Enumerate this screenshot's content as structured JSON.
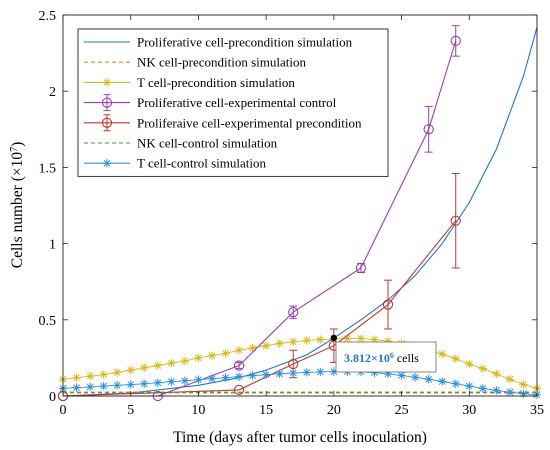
{
  "chart_data": {
    "type": "line",
    "xlabel": "Time (days after tumor cells inoculation)",
    "ylabel": "Cells number (×10",
    "ylabel_exponent": "7",
    "ylabel_close": ")",
    "xlim": [
      0,
      35
    ],
    "ylim": [
      0,
      2.5
    ],
    "x_ticks": [
      0,
      5,
      10,
      15,
      20,
      25,
      30,
      35
    ],
    "y_ticks": [
      0,
      0.5,
      1,
      1.5,
      2,
      2.5
    ],
    "grid": false,
    "legend_position": "top-left",
    "series": [
      {
        "name": "Proliferative cell-precondition simulation",
        "style": "line",
        "color": "#1f77c9",
        "dash": "",
        "marker": "none",
        "x": [
          0,
          5,
          10,
          13,
          15,
          18,
          20,
          22,
          24,
          26,
          28,
          30,
          32,
          34,
          35
        ],
        "y": [
          0,
          0.02,
          0.07,
          0.12,
          0.17,
          0.27,
          0.38,
          0.5,
          0.63,
          0.79,
          1.0,
          1.27,
          1.62,
          2.1,
          2.42
        ]
      },
      {
        "name": "NK cell-precondition simulation",
        "style": "line",
        "color": "#e0844a",
        "dash": "4,3",
        "marker": "none",
        "x": [
          0,
          35
        ],
        "y": [
          0.02,
          0.02
        ]
      },
      {
        "name": "T cell-precondition simulation",
        "style": "line",
        "color": "#d9b81c",
        "dash": "",
        "marker": "star",
        "x": [
          0,
          1,
          2,
          3,
          4,
          5,
          6,
          7,
          8,
          9,
          10,
          11,
          12,
          13,
          14,
          15,
          16,
          17,
          18,
          19,
          20,
          21,
          22,
          23,
          24,
          25,
          26,
          27,
          28,
          29,
          30,
          31,
          32,
          33,
          34,
          35
        ],
        "y": [
          0.11,
          0.12,
          0.13,
          0.14,
          0.155,
          0.17,
          0.185,
          0.2,
          0.215,
          0.23,
          0.25,
          0.265,
          0.28,
          0.3,
          0.315,
          0.33,
          0.345,
          0.355,
          0.365,
          0.37,
          0.375,
          0.378,
          0.378,
          0.37,
          0.36,
          0.345,
          0.325,
          0.3,
          0.275,
          0.245,
          0.21,
          0.18,
          0.145,
          0.11,
          0.075,
          0.05
        ]
      },
      {
        "name": "Proliferative cell-experimental control",
        "style": "errorbar",
        "color": "#9b3fb0",
        "dash": "",
        "marker": "circle",
        "x": [
          0,
          7,
          13,
          17,
          22,
          27,
          29
        ],
        "y": [
          0,
          0,
          0.2,
          0.55,
          0.84,
          1.75,
          2.33
        ],
        "err": [
          0,
          0,
          0.02,
          0.04,
          0.03,
          0.15,
          0.1
        ]
      },
      {
        "name": "Proliferaive cell-experimental precondition",
        "style": "errorbar",
        "color": "#c0392b",
        "dash": "",
        "marker": "circle",
        "x": [
          0,
          13,
          17,
          20,
          24,
          29
        ],
        "y": [
          0,
          0.04,
          0.21,
          0.33,
          0.6,
          1.15
        ],
        "err": [
          0,
          0,
          0.09,
          0.11,
          0.16,
          0.31
        ]
      },
      {
        "name": "NK cell-control simulation",
        "style": "line",
        "color": "#3aa12f",
        "dash": "4,3",
        "marker": "none",
        "x": [
          0,
          35
        ],
        "y": [
          0.025,
          0.025
        ]
      },
      {
        "name": "T cell-control simulation",
        "style": "line",
        "color": "#2f8fde",
        "dash": "",
        "marker": "star",
        "x": [
          0,
          1,
          2,
          3,
          4,
          5,
          6,
          7,
          8,
          9,
          10,
          11,
          12,
          13,
          14,
          15,
          16,
          17,
          18,
          19,
          20,
          21,
          22,
          23,
          24,
          25,
          26,
          27,
          28,
          29,
          30,
          31,
          32,
          33,
          34,
          35
        ],
        "y": [
          0.05,
          0.055,
          0.06,
          0.065,
          0.07,
          0.075,
          0.08,
          0.087,
          0.094,
          0.1,
          0.107,
          0.114,
          0.12,
          0.127,
          0.134,
          0.14,
          0.146,
          0.151,
          0.155,
          0.158,
          0.16,
          0.16,
          0.158,
          0.153,
          0.145,
          0.135,
          0.123,
          0.11,
          0.095,
          0.08,
          0.065,
          0.05,
          0.037,
          0.025,
          0.015,
          0.008
        ]
      }
    ],
    "annotation": {
      "x": 20,
      "y": 0.3812,
      "value": "3.812",
      "times": "×",
      "base": "10",
      "exponent": "6",
      "unit": " cells",
      "value_color": "#1f77c9"
    }
  }
}
